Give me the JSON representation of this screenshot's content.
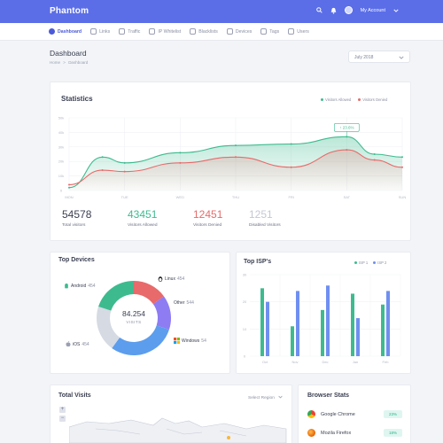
{
  "app": {
    "brand": "Phantom"
  },
  "topbar": {
    "account_label": "My Account"
  },
  "nav": [
    {
      "label": "Dashboard",
      "icon": "dashboard-icon",
      "active": true
    },
    {
      "label": "Links",
      "icon": "link-icon"
    },
    {
      "label": "Traffic",
      "icon": "traffic-icon"
    },
    {
      "label": "IP Whitelist",
      "icon": "shield-icon"
    },
    {
      "label": "Blacklists",
      "icon": "ban-icon"
    },
    {
      "label": "Devices",
      "icon": "monitor-icon"
    },
    {
      "label": "Tags",
      "icon": "tag-icon"
    },
    {
      "label": "Users",
      "icon": "users-icon"
    }
  ],
  "page": {
    "title": "Dashboard",
    "breadcrumb_home": "Home",
    "breadcrumb_sep": ">",
    "breadcrumb_current": "Dashboard",
    "date_select": "July 2018"
  },
  "statistics": {
    "title": "Statistics",
    "legend_allowed": "Visitors Allowed",
    "legend_denied": "Visitors Denied",
    "tooltip": "23.6%",
    "stats": [
      {
        "value": "54578",
        "label": "Total visitors",
        "color": "#3a3f51"
      },
      {
        "value": "43451",
        "label": "Visitors Allowed",
        "color": "#3dbb8f"
      },
      {
        "value": "12451",
        "label": "Visitors Denied",
        "color": "#e86a6a"
      },
      {
        "value": "1251",
        "label": "Disabled Visitors",
        "color": "#c4c8d4"
      }
    ]
  },
  "devices": {
    "title": "Top Devices",
    "center_value": "84.254",
    "center_label": "VISITS",
    "items": [
      {
        "name": "Android",
        "value": "454",
        "icon": "android-icon"
      },
      {
        "name": "Linux",
        "value": "454",
        "icon": "linux-icon"
      },
      {
        "name": "Other",
        "value": "544",
        "icon": ""
      },
      {
        "name": "Windows",
        "value": "54",
        "icon": "windows-icon"
      },
      {
        "name": "iOS",
        "value": "454",
        "icon": "apple-icon"
      }
    ]
  },
  "isp": {
    "title": "Top ISP's",
    "legend1": "ISP 1",
    "legend2": "ISP 2"
  },
  "visits": {
    "title": "Total Visits",
    "region": "Select Region",
    "zoom_in": "+",
    "zoom_out": "−"
  },
  "browsers": {
    "title": "Browser Stats",
    "items": [
      {
        "name": "Google Chrome",
        "pct": "23%",
        "icon": "chrome-icon"
      },
      {
        "name": "Mozila Firefox",
        "pct": "18%",
        "icon": "firefox-icon"
      }
    ]
  },
  "colors": {
    "primary": "#5b6ee8",
    "green": "#3dbb8f",
    "red": "#e86a6a",
    "purple": "#8e7cf3",
    "blue": "#5c9ded",
    "gray": "#d5dae3"
  },
  "chart_data": [
    {
      "type": "area",
      "categories": [
        "MON",
        "TUE",
        "WED",
        "THU",
        "FRI",
        "SAT",
        "SUN"
      ],
      "y_ticks": [
        "0",
        "10k",
        "20k",
        "30k",
        "40k",
        "50k"
      ],
      "ylim": [
        0,
        50
      ],
      "series": [
        {
          "name": "Visitors Allowed",
          "x": [
            0,
            0.6,
            1,
            2,
            3,
            4,
            5,
            5.5,
            6
          ],
          "values": [
            2,
            23,
            19,
            26,
            31,
            32,
            37,
            25,
            23
          ],
          "color": "#3dbb8f"
        },
        {
          "name": "Visitors Denied",
          "x": [
            0,
            0.6,
            1,
            2,
            3,
            4,
            5,
            5.5,
            6
          ],
          "values": [
            4,
            14,
            13,
            19,
            23,
            16,
            28,
            21,
            16
          ],
          "color": "#e86a6a"
        }
      ],
      "legend": "top-right"
    },
    {
      "type": "pie",
      "slices": [
        {
          "label": "Linux",
          "value": 15,
          "color": "#e86a6a"
        },
        {
          "label": "Other",
          "value": 15,
          "color": "#8e7cf3"
        },
        {
          "label": "Windows",
          "value": 30,
          "color": "#5c9ded"
        },
        {
          "label": "iOS",
          "value": 20,
          "color": "#d5dae3"
        },
        {
          "label": "Android",
          "value": 20,
          "color": "#3dbb8f"
        }
      ]
    },
    {
      "type": "bar",
      "categories": [
        "Oct",
        "Nov",
        "Dec",
        "Jan",
        "Feb"
      ],
      "y_ticks": [
        "0",
        "10",
        "20",
        "30"
      ],
      "ylim": [
        0,
        30
      ],
      "series": [
        {
          "name": "ISP 1",
          "values": [
            25,
            11,
            17,
            23,
            19
          ],
          "color": "#3dbb8f"
        },
        {
          "name": "ISP 2",
          "values": [
            20,
            24,
            26,
            14,
            24
          ],
          "color": "#6f8ff0"
        }
      ],
      "legend": "top-right"
    }
  ]
}
